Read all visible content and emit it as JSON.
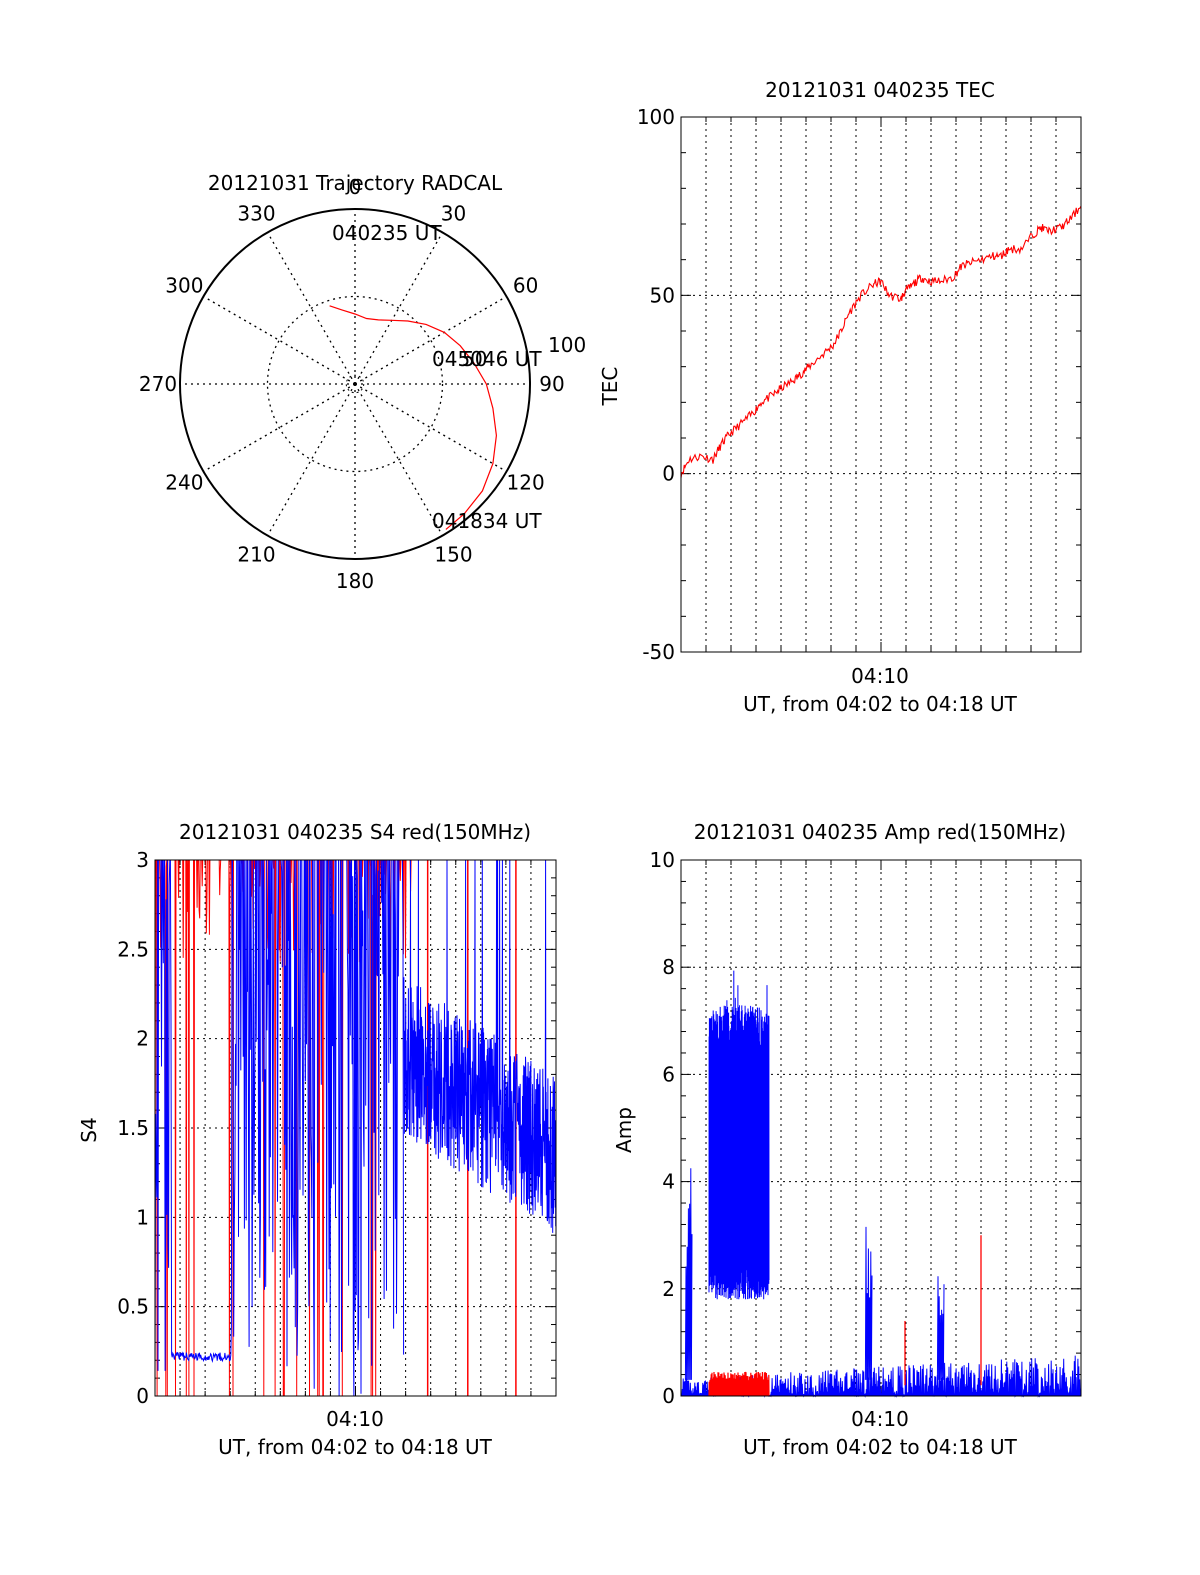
{
  "colors": {
    "red": "#ff0000",
    "blue": "#0000ff",
    "axis": "#000000",
    "grid": "#000000"
  },
  "chart_data": [
    {
      "id": "trajectory",
      "type": "polar",
      "title": "20121031 Trajectory RADCAL",
      "angle_labels": [
        "0",
        "30",
        "60",
        "90",
        "120",
        "150",
        "180",
        "210",
        "240",
        "270",
        "300",
        "330"
      ],
      "radius_label": "100",
      "start_label": "040235 UT",
      "mid_label": "045046 UT",
      "mid_label_extra": "50",
      "end_label": "041834 UT",
      "trajectory": {
        "az": [
          342,
          350,
          0,
          10,
          20,
          30,
          40,
          50,
          60,
          70,
          80,
          90,
          100,
          110,
          120,
          130,
          140,
          148
        ],
        "r": [
          47,
          43,
          40,
          38,
          39,
          42,
          47,
          53,
          59,
          64,
          69,
          75,
          80,
          86,
          91,
          95,
          97,
          98
        ]
      },
      "rmax": 100,
      "grid": true
    },
    {
      "id": "tec",
      "type": "line",
      "title": "20121031 040235 TEC",
      "ylabel": "TEC",
      "xlabel": "UT, from 04:02 to 04:18 UT",
      "xtick_label": "04:10",
      "yticks": [
        "-50",
        "0",
        "50",
        "100"
      ],
      "ylim": [
        -50,
        100
      ],
      "series": [
        {
          "color": "red",
          "x": [
            0,
            0.02,
            0.05,
            0.08,
            0.1,
            0.12,
            0.15,
            0.18,
            0.2,
            0.23,
            0.25,
            0.28,
            0.3,
            0.32,
            0.35,
            0.38,
            0.4,
            0.42,
            0.45,
            0.48,
            0.5,
            0.52,
            0.55,
            0.56,
            0.58,
            0.6,
            0.62,
            0.65,
            0.68,
            0.7,
            0.72,
            0.75,
            0.78,
            0.8,
            0.82,
            0.85,
            0.88,
            0.9,
            0.92,
            0.95,
            0.97,
            1.0
          ],
          "y": [
            0,
            4,
            5,
            4,
            8,
            11,
            14,
            17,
            20,
            22,
            24,
            26,
            28,
            30,
            33,
            36,
            40,
            45,
            50,
            53,
            54,
            50,
            49,
            51,
            53,
            55,
            54,
            54,
            55,
            58,
            59,
            60,
            61,
            61,
            63,
            63,
            67,
            69,
            68,
            69,
            71,
            75
          ]
        }
      ],
      "grid": true
    },
    {
      "id": "s4",
      "type": "line",
      "title": "20121031 040235 S4 red(150MHz)",
      "ylabel": "S4",
      "xlabel": "UT, from 04:02 to 04:18 UT",
      "xtick_label": "04:10",
      "yticks": [
        "0",
        "0.5",
        "1",
        "1.5",
        "2",
        "2.5",
        "3"
      ],
      "ylim": [
        0,
        3
      ],
      "series": [
        {
          "color": "red",
          "style": "spikes",
          "x_start": 0,
          "x_end": 0.64,
          "baseline": 2.4,
          "extra_spikes": [
            0.68,
            0.78,
            0.9
          ]
        },
        {
          "color": "blue",
          "style": "spikes",
          "x_start": 0,
          "x_end": 0.62,
          "flat_start": 0.04,
          "flat_end": 0.19,
          "flat_level": 0.22
        },
        {
          "color": "blue",
          "style": "noise",
          "x_start": 0.62,
          "x_end": 1.0,
          "center": 1.65,
          "amplitude": 0.45
        }
      ],
      "grid": true
    },
    {
      "id": "amp",
      "type": "line",
      "title": "20121031 040235 Amp red(150MHz)",
      "ylabel": "Amp",
      "xlabel": "UT, from 04:02 to 04:18 UT",
      "xtick_label": "04:10",
      "yticks": [
        "0",
        "2",
        "4",
        "6",
        "8",
        "10"
      ],
      "ylim": [
        0,
        10
      ],
      "series": [
        {
          "color": "blue",
          "style": "band",
          "x_start": 0.07,
          "x_end": 0.22,
          "low": 2.4,
          "high": 7.3,
          "peak": 8.0
        },
        {
          "color": "red",
          "style": "band",
          "x_start": 0.07,
          "x_end": 0.22,
          "low": 0.0,
          "high": 0.45
        },
        {
          "color": "blue",
          "style": "floor",
          "x_start": 0.0,
          "x_end": 1.0,
          "level": 0.55,
          "spikes": [
            [
              0.47,
              3.3
            ],
            [
              0.65,
              2.3
            ],
            [
              0.02,
              4.7
            ]
          ]
        },
        {
          "color": "red",
          "style": "spikes",
          "spikes": [
            [
              0.56,
              1.4
            ],
            [
              0.75,
              3.0
            ]
          ]
        }
      ],
      "grid": true
    }
  ]
}
